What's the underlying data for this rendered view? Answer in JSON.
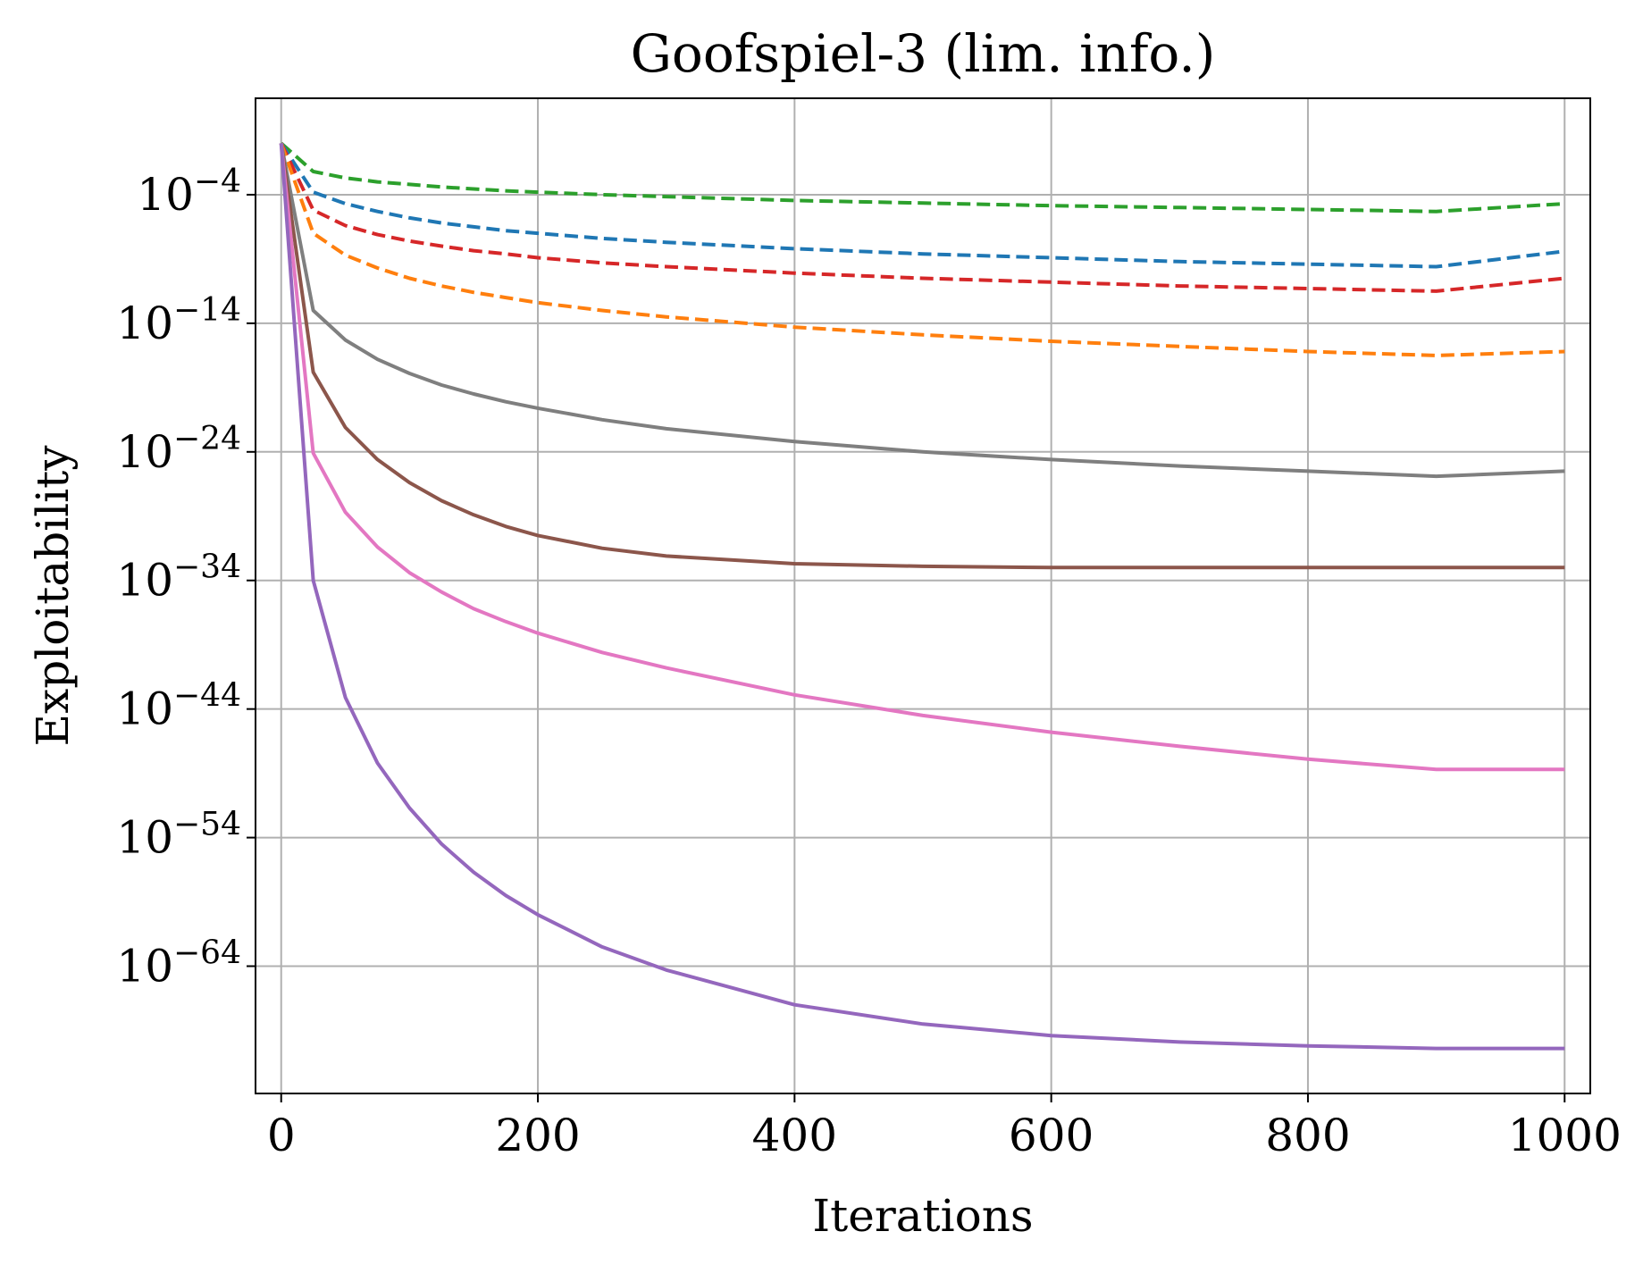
{
  "chart_data": {
    "type": "line",
    "title": "Goofspiel-3 (lim. info.)",
    "xlabel": "Iterations",
    "ylabel": "Exploitability",
    "yscale": "log10",
    "xlim": [
      -20,
      1020
    ],
    "ylim_exp": [
      -73.9,
      3.5
    ],
    "grid": true,
    "legend": "none",
    "x_ticks": [
      {
        "value": 0,
        "label": "0"
      },
      {
        "value": 200,
        "label": "200"
      },
      {
        "value": 400,
        "label": "400"
      },
      {
        "value": 600,
        "label": "600"
      },
      {
        "value": 800,
        "label": "800"
      },
      {
        "value": 1000,
        "label": "1000"
      }
    ],
    "y_ticks": [
      {
        "exp": -4,
        "base": "10",
        "sup": "−4"
      },
      {
        "exp": -14,
        "base": "10",
        "sup": "−14"
      },
      {
        "exp": -24,
        "base": "10",
        "sup": "−24"
      },
      {
        "exp": -34,
        "base": "10",
        "sup": "−34"
      },
      {
        "exp": -44,
        "base": "10",
        "sup": "−44"
      },
      {
        "exp": -54,
        "base": "10",
        "sup": "−54"
      },
      {
        "exp": -64,
        "base": "10",
        "sup": "−64"
      }
    ],
    "x": [
      0,
      25,
      50,
      75,
      100,
      125,
      150,
      175,
      200,
      250,
      300,
      400,
      500,
      600,
      700,
      800,
      900,
      1000
    ],
    "series": [
      {
        "name": "green-dashed",
        "color": "#2ca02c",
        "dashed": true,
        "log10_values": [
          0,
          -2.2,
          -2.7,
          -3.0,
          -3.2,
          -3.4,
          -3.55,
          -3.7,
          -3.8,
          -4.0,
          -4.15,
          -4.45,
          -4.65,
          -4.85,
          -5.0,
          -5.15,
          -5.3,
          -4.7
        ]
      },
      {
        "name": "blue-dashed",
        "color": "#1f77b4",
        "dashed": true,
        "log10_values": [
          0,
          -3.8,
          -4.7,
          -5.3,
          -5.8,
          -6.2,
          -6.5,
          -6.8,
          -7.0,
          -7.4,
          -7.7,
          -8.2,
          -8.6,
          -8.9,
          -9.2,
          -9.4,
          -9.6,
          -8.4
        ]
      },
      {
        "name": "red-dashed",
        "color": "#d62728",
        "dashed": true,
        "log10_values": [
          0,
          -5.2,
          -6.4,
          -7.1,
          -7.6,
          -8.0,
          -8.35,
          -8.6,
          -8.9,
          -9.3,
          -9.6,
          -10.1,
          -10.5,
          -10.8,
          -11.1,
          -11.3,
          -11.5,
          -10.5
        ]
      },
      {
        "name": "orange-dashed",
        "color": "#ff7f0e",
        "dashed": true,
        "log10_values": [
          0,
          -7.0,
          -8.7,
          -9.7,
          -10.5,
          -11.1,
          -11.6,
          -12.0,
          -12.4,
          -13.0,
          -13.5,
          -14.3,
          -14.9,
          -15.4,
          -15.8,
          -16.2,
          -16.5,
          -16.2
        ]
      },
      {
        "name": "gray",
        "color": "#7f7f7f",
        "dashed": false,
        "log10_values": [
          0,
          -13.0,
          -15.3,
          -16.8,
          -17.9,
          -18.8,
          -19.5,
          -20.1,
          -20.6,
          -21.5,
          -22.2,
          -23.2,
          -24.0,
          -24.6,
          -25.1,
          -25.5,
          -25.9,
          -25.5
        ]
      },
      {
        "name": "brown",
        "color": "#8c564b",
        "dashed": false,
        "log10_values": [
          0,
          -17.8,
          -22.1,
          -24.6,
          -26.4,
          -27.8,
          -28.9,
          -29.8,
          -30.5,
          -31.5,
          -32.1,
          -32.7,
          -32.9,
          -33.0,
          -33.0,
          -33.0,
          -33.0,
          -33.0
        ]
      },
      {
        "name": "pink",
        "color": "#e377c2",
        "dashed": false,
        "log10_values": [
          0,
          -24.1,
          -28.7,
          -31.4,
          -33.4,
          -34.9,
          -36.2,
          -37.2,
          -38.1,
          -39.6,
          -40.8,
          -42.9,
          -44.5,
          -45.8,
          -46.9,
          -47.9,
          -48.7,
          -48.7
        ]
      },
      {
        "name": "purple",
        "color": "#9467bd",
        "dashed": false,
        "log10_values": [
          0,
          -34.0,
          -43.1,
          -48.2,
          -51.7,
          -54.5,
          -56.7,
          -58.5,
          -60.0,
          -62.5,
          -64.3,
          -67.0,
          -68.5,
          -69.4,
          -69.9,
          -70.2,
          -70.4,
          -70.4
        ]
      }
    ]
  }
}
